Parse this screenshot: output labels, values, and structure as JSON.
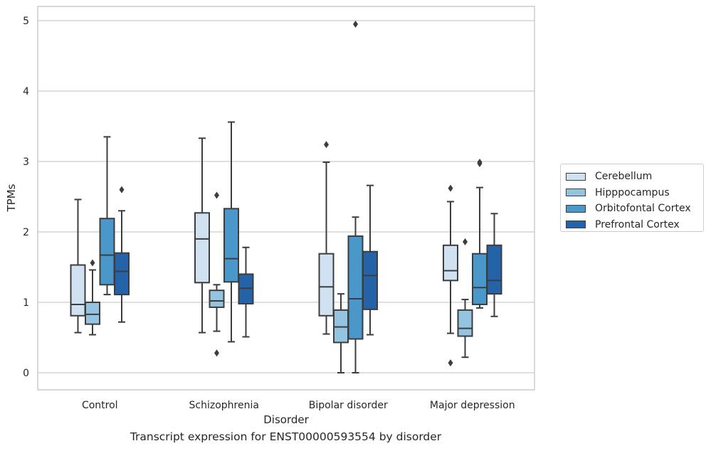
{
  "chart_data": {
    "type": "box",
    "title": "Transcript expression for ENST00000593554 by disorder",
    "xlabel": "Disorder",
    "ylabel": "TPMs",
    "ylim": [
      -0.23,
      5.2
    ],
    "yticks": [
      0,
      1,
      2,
      3,
      4,
      5
    ],
    "grid": "horizontal",
    "legend": "right",
    "categories": [
      "Control",
      "Schizophrenia",
      "Bipolar disorder",
      "Major depression"
    ],
    "series": [
      {
        "name": "Cerebellum",
        "color": "#d0e1f2",
        "boxes": [
          {
            "whisker_low": 0.57,
            "q1": 0.81,
            "median": 0.97,
            "q3": 1.53,
            "whisker_high": 2.46,
            "outliers": []
          },
          {
            "whisker_low": 0.57,
            "q1": 1.28,
            "median": 1.9,
            "q3": 2.27,
            "whisker_high": 3.33,
            "outliers": []
          },
          {
            "whisker_low": 0.55,
            "q1": 0.81,
            "median": 1.22,
            "q3": 1.69,
            "whisker_high": 2.99,
            "outliers": [
              3.24
            ]
          },
          {
            "whisker_low": 0.56,
            "q1": 1.31,
            "median": 1.45,
            "q3": 1.81,
            "whisker_high": 2.43,
            "outliers": [
              2.62,
              0.14
            ]
          }
        ]
      },
      {
        "name": "Hipppocampus",
        "color": "#94c4df",
        "boxes": [
          {
            "whisker_low": 0.54,
            "q1": 0.69,
            "median": 0.83,
            "q3": 1.0,
            "whisker_high": 1.46,
            "outliers": [
              1.56
            ]
          },
          {
            "whisker_low": 0.59,
            "q1": 0.93,
            "median": 1.02,
            "q3": 1.17,
            "whisker_high": 1.25,
            "outliers": [
              2.52,
              0.28
            ]
          },
          {
            "whisker_low": 0.0,
            "q1": 0.43,
            "median": 0.65,
            "q3": 0.89,
            "whisker_high": 1.12,
            "outliers": []
          },
          {
            "whisker_low": 0.22,
            "q1": 0.52,
            "median": 0.63,
            "q3": 0.89,
            "whisker_high": 1.04,
            "outliers": [
              1.86
            ]
          }
        ]
      },
      {
        "name": "Orbitofontal Cortex",
        "color": "#4a98c9",
        "boxes": [
          {
            "whisker_low": 1.11,
            "q1": 1.25,
            "median": 1.67,
            "q3": 2.19,
            "whisker_high": 3.35,
            "outliers": []
          },
          {
            "whisker_low": 0.44,
            "q1": 1.29,
            "median": 1.62,
            "q3": 2.33,
            "whisker_high": 3.56,
            "outliers": []
          },
          {
            "whisker_low": 0.0,
            "q1": 0.48,
            "median": 1.05,
            "q3": 1.94,
            "whisker_high": 2.21,
            "outliers": [
              4.95
            ]
          },
          {
            "whisker_low": 0.92,
            "q1": 0.97,
            "median": 1.21,
            "q3": 1.69,
            "whisker_high": 2.63,
            "outliers": [
              2.99,
              2.97
            ]
          }
        ]
      },
      {
        "name": "Prefrontal Cortex",
        "color": "#2563a8",
        "boxes": [
          {
            "whisker_low": 0.72,
            "q1": 1.11,
            "median": 1.44,
            "q3": 1.7,
            "whisker_high": 2.3,
            "outliers": [
              2.6
            ]
          },
          {
            "whisker_low": 0.51,
            "q1": 0.98,
            "median": 1.2,
            "q3": 1.4,
            "whisker_high": 1.78,
            "outliers": []
          },
          {
            "whisker_low": 0.54,
            "q1": 0.9,
            "median": 1.38,
            "q3": 1.72,
            "whisker_high": 2.66,
            "outliers": []
          },
          {
            "whisker_low": 0.8,
            "q1": 1.12,
            "median": 1.31,
            "q3": 1.81,
            "whisker_high": 2.26,
            "outliers": []
          }
        ]
      }
    ]
  }
}
